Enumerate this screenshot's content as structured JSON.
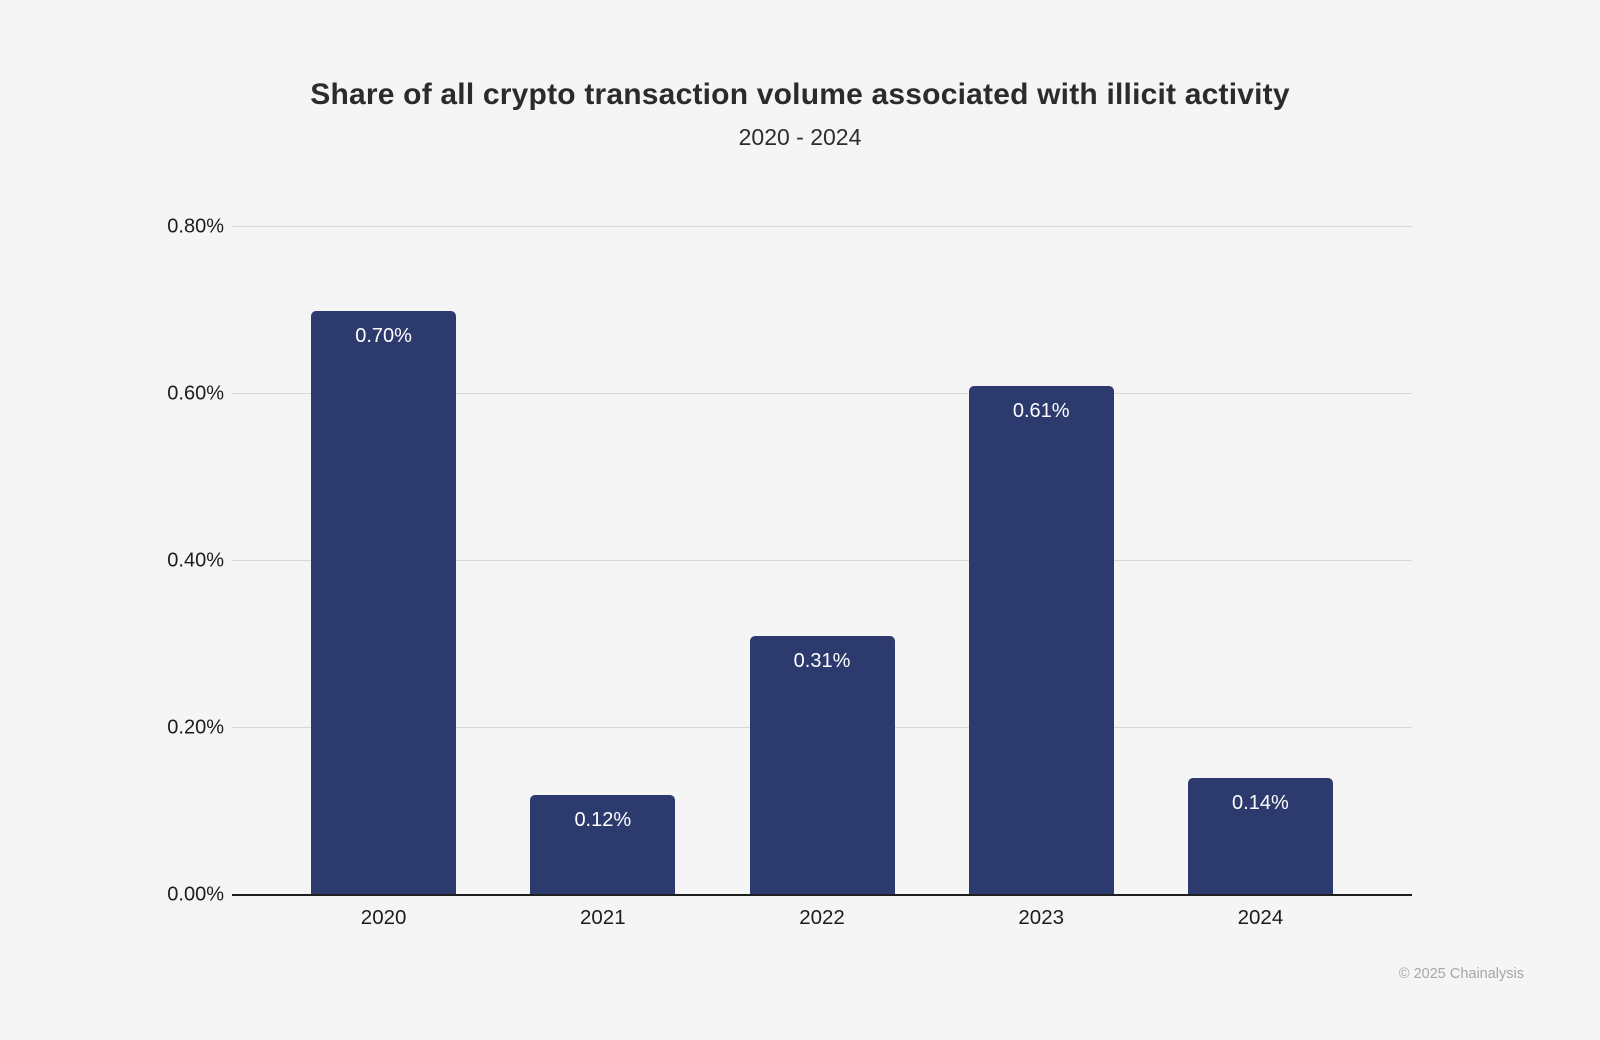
{
  "header": {
    "title": "Share of all crypto transaction volume associated with illicit activity",
    "subtitle": "2020 - 2024"
  },
  "footer": {
    "credit": "© 2025 Chainalysis"
  },
  "colors": {
    "background": "#f5f5f6",
    "bar": "#2d3a6d",
    "bar_value_label": "#ffffff",
    "gridline": "#d8d8d9",
    "baseline": "#1e1e1e",
    "axis_text": "#1c1c1c",
    "credit_text": "#a7a7a8"
  },
  "chart_data": {
    "type": "bar",
    "title": "Share of all crypto transaction volume associated with illicit activity",
    "subtitle": "2020 - 2024",
    "categories": [
      "2020",
      "2021",
      "2022",
      "2023",
      "2024"
    ],
    "values": [
      0.7,
      0.12,
      0.31,
      0.61,
      0.14
    ],
    "value_labels": [
      "0.70%",
      "0.12%",
      "0.31%",
      "0.61%",
      "0.14%"
    ],
    "xlabel": "",
    "ylabel": "",
    "ylim": [
      0,
      0.8
    ],
    "yticks": [
      0,
      0.2,
      0.4,
      0.6,
      0.8
    ],
    "ytick_labels": [
      "0.00%",
      "0.20%",
      "0.40%",
      "0.60%",
      "0.80%"
    ],
    "grid": true,
    "legend": "none",
    "bar_color": "#2d3a6d",
    "label_color": "#ffffff"
  }
}
